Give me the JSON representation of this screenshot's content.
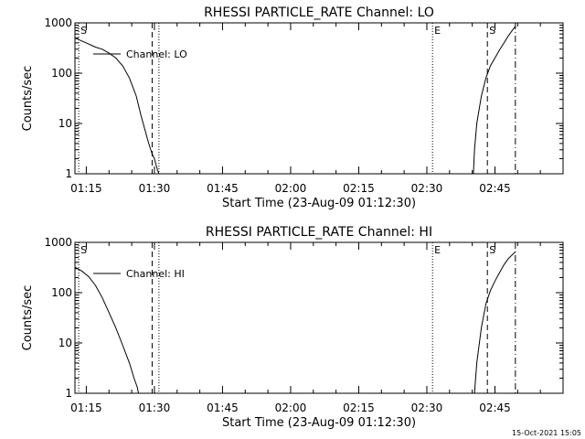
{
  "chart_data": [
    {
      "type": "line",
      "title": "RHESSI PARTICLE_RATE Channel: LO",
      "xlabel": "Start Time (23-Aug-09 01:12:30)",
      "ylabel": "Counts/sec",
      "y_scale": "log",
      "ylim": [
        1,
        1000
      ],
      "xlim": [
        "01:12:30",
        "03:00:00"
      ],
      "x_ticks": [
        "01:15",
        "01:30",
        "01:45",
        "02:00",
        "02:15",
        "02:30",
        "02:45"
      ],
      "y_ticks": [
        "1",
        "10",
        "100",
        "1000"
      ],
      "legend": {
        "position": "top-left",
        "entries": [
          "Channel: LO"
        ]
      },
      "markers": [
        {
          "label": "S",
          "x": "01:13:20",
          "style": "dotted"
        },
        {
          "label": "",
          "x": "01:29:30",
          "style": "dashed"
        },
        {
          "label": "",
          "x": "01:31:00",
          "style": "dotted"
        },
        {
          "label": "E",
          "x": "02:31:15",
          "style": "dotted"
        },
        {
          "label": "S",
          "x": "02:43:20",
          "style": "dashed"
        },
        {
          "label": "",
          "x": "02:49:30",
          "style": "dashdot"
        }
      ],
      "series": [
        {
          "name": "Channel: LO",
          "segments": [
            [
              [
                "01:12:30",
                500
              ],
              [
                "01:15:00",
                400
              ],
              [
                "01:17:00",
                330
              ],
              [
                "01:18:30",
                300
              ],
              [
                "01:20:00",
                250
              ],
              [
                "01:21:30",
                200
              ],
              [
                "01:23:00",
                140
              ],
              [
                "01:24:30",
                80
              ],
              [
                "01:26:00",
                35
              ],
              [
                "01:27:00",
                15
              ],
              [
                "01:28:00",
                7
              ],
              [
                "01:28:45",
                4
              ],
              [
                "01:29:30",
                2.5
              ],
              [
                "01:30:00",
                2
              ],
              [
                "01:30:40",
                1.2
              ],
              [
                "01:31:00",
                1
              ]
            ],
            [
              [
                "02:40:15",
                1
              ],
              [
                "02:40:30",
                3
              ],
              [
                "02:41:00",
                10
              ],
              [
                "02:42:00",
                35
              ],
              [
                "02:43:00",
                80
              ],
              [
                "02:44:00",
                140
              ],
              [
                "02:45:00",
                200
              ],
              [
                "02:46:00",
                290
              ],
              [
                "02:47:00",
                400
              ],
              [
                "02:48:00",
                560
              ],
              [
                "02:49:00",
                750
              ],
              [
                "02:49:30",
                850
              ]
            ]
          ]
        }
      ]
    },
    {
      "type": "line",
      "title": "RHESSI PARTICLE_RATE Channel: HI",
      "xlabel": "Start Time (23-Aug-09 01:12:30)",
      "ylabel": "Counts/sec",
      "y_scale": "log",
      "ylim": [
        1,
        1000
      ],
      "xlim": [
        "01:12:30",
        "03:00:00"
      ],
      "x_ticks": [
        "01:15",
        "01:30",
        "01:45",
        "02:00",
        "02:15",
        "02:30",
        "02:45"
      ],
      "y_ticks": [
        "1",
        "10",
        "100",
        "1000"
      ],
      "legend": {
        "position": "top-left",
        "entries": [
          "Channel: HI"
        ]
      },
      "markers": [
        {
          "label": "S",
          "x": "01:13:20",
          "style": "dotted"
        },
        {
          "label": "",
          "x": "01:29:30",
          "style": "dashed"
        },
        {
          "label": "",
          "x": "01:31:00",
          "style": "dotted"
        },
        {
          "label": "E",
          "x": "02:31:15",
          "style": "dotted"
        },
        {
          "label": "S",
          "x": "02:43:20",
          "style": "dashed"
        },
        {
          "label": "",
          "x": "02:49:30",
          "style": "dashdot"
        }
      ],
      "series": [
        {
          "name": "Channel: HI",
          "segments": [
            [
              [
                "01:12:30",
                320
              ],
              [
                "01:14:00",
                270
              ],
              [
                "01:15:30",
                210
              ],
              [
                "01:17:00",
                140
              ],
              [
                "01:18:30",
                80
              ],
              [
                "01:20:00",
                40
              ],
              [
                "01:21:30",
                20
              ],
              [
                "01:23:00",
                9
              ],
              [
                "01:24:30",
                4
              ],
              [
                "01:25:30",
                2
              ],
              [
                "01:26:15",
                1.3
              ],
              [
                "01:26:30",
                1
              ]
            ],
            [
              [
                "02:40:30",
                1
              ],
              [
                "02:41:00",
                4
              ],
              [
                "02:42:00",
                20
              ],
              [
                "02:43:00",
                60
              ],
              [
                "02:44:00",
                110
              ],
              [
                "02:45:00",
                170
              ],
              [
                "02:46:00",
                250
              ],
              [
                "02:47:00",
                360
              ],
              [
                "02:48:00",
                480
              ],
              [
                "02:49:30",
                650
              ]
            ]
          ]
        }
      ]
    }
  ],
  "footer": {
    "timestamp": "15-Oct-2021 15:05"
  }
}
